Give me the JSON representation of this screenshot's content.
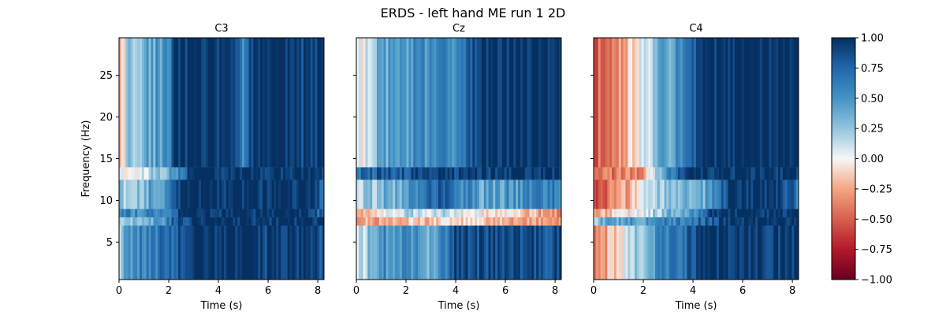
{
  "chart_data": {
    "type": "heatmap",
    "title": "ERDS - left hand ME run 1 2D",
    "xlabel": "Time (s)",
    "ylabel": "Frequency (Hz)",
    "xlim": [
      0,
      8.25
    ],
    "ylim": [
      0.5,
      29.5
    ],
    "x_ticks": [
      0,
      2,
      4,
      6,
      8
    ],
    "y_ticks": [
      5,
      10,
      15,
      20,
      25
    ],
    "colormap": "RdBu",
    "colorbar": {
      "range": [
        -1.0,
        1.0
      ],
      "ticks": [
        "1.00",
        "0.75",
        "0.50",
        "0.25",
        "0.00",
        "−0.25",
        "−0.50",
        "−0.75",
        "−1.00"
      ]
    },
    "panels": [
      {
        "title": "C3",
        "rows": [
          {
            "band": [
              0.5,
              7
            ],
            "profile": [
              [
                0,
                0.1
              ],
              [
                0.4,
                0.5
              ],
              [
                1.0,
                0.6
              ],
              [
                2.0,
                0.7
              ],
              [
                2.5,
                0.95
              ],
              [
                4.0,
                1.0
              ],
              [
                8.25,
                0.9
              ]
            ]
          },
          {
            "band": [
              7,
              8
            ],
            "profile": [
              [
                0,
                0.3
              ],
              [
                1.5,
                0.4
              ],
              [
                2.5,
                0.9
              ],
              [
                4.0,
                1.0
              ],
              [
                8.25,
                1.0
              ]
            ]
          },
          {
            "band": [
              8,
              9
            ],
            "profile": [
              [
                0,
                0.55
              ],
              [
                2.0,
                0.6
              ],
              [
                2.5,
                1.0
              ],
              [
                7.5,
                1.0
              ],
              [
                8.25,
                0.7
              ]
            ]
          },
          {
            "band": [
              9,
              12.5
            ],
            "profile": [
              [
                0,
                0.2
              ],
              [
                1.0,
                0.35
              ],
              [
                2.0,
                0.55
              ],
              [
                2.5,
                1.0
              ],
              [
                7.5,
                1.0
              ],
              [
                8.25,
                0.7
              ]
            ]
          },
          {
            "band": [
              12.5,
              14
            ],
            "profile": [
              [
                0,
                -0.1
              ],
              [
                1.0,
                0.1
              ],
              [
                2.0,
                0.4
              ],
              [
                3.0,
                1.0
              ],
              [
                8.25,
                1.0
              ]
            ]
          },
          {
            "band": [
              14,
              29.5
            ],
            "profile": [
              [
                0,
                -0.2
              ],
              [
                0.5,
                0.3
              ],
              [
                2.0,
                0.5
              ],
              [
                2.3,
                1.0
              ],
              [
                4.2,
                1.0
              ],
              [
                5.0,
                0.6
              ],
              [
                5.5,
                1.0
              ],
              [
                8.25,
                0.9
              ]
            ]
          }
        ]
      },
      {
        "title": "Cz",
        "rows": [
          {
            "band": [
              0.5,
              7
            ],
            "profile": [
              [
                0,
                0.0
              ],
              [
                1.0,
                0.5
              ],
              [
                2.0,
                0.6
              ],
              [
                3.0,
                0.3
              ],
              [
                4.0,
                0.9
              ],
              [
                8.25,
                0.85
              ]
            ]
          },
          {
            "band": [
              7,
              8
            ],
            "profile": [
              [
                0,
                -0.3
              ],
              [
                2.0,
                -0.2
              ],
              [
                4.0,
                -0.1
              ],
              [
                6.0,
                -0.2
              ],
              [
                8.25,
                -0.3
              ]
            ]
          },
          {
            "band": [
              8,
              9
            ],
            "profile": [
              [
                0,
                -0.2
              ],
              [
                2.0,
                0.2
              ],
              [
                4.0,
                0.1
              ],
              [
                6.0,
                -0.1
              ],
              [
                8.25,
                -0.3
              ]
            ]
          },
          {
            "band": [
              9,
              12.5
            ],
            "profile": [
              [
                0,
                0.2
              ],
              [
                2.0,
                0.4
              ],
              [
                3.5,
                0.8
              ],
              [
                5.0,
                0.4
              ],
              [
                6.5,
                0.5
              ],
              [
                8.25,
                0.6
              ]
            ]
          },
          {
            "band": [
              12.5,
              14
            ],
            "profile": [
              [
                0,
                0.7
              ],
              [
                3.0,
                0.9
              ],
              [
                8.25,
                1.0
              ]
            ]
          },
          {
            "band": [
              14,
              29.5
            ],
            "profile": [
              [
                0,
                -0.1
              ],
              [
                1.0,
                0.4
              ],
              [
                3.0,
                0.55
              ],
              [
                4.0,
                0.5
              ],
              [
                5.0,
                1.0
              ],
              [
                8.25,
                1.0
              ]
            ]
          }
        ]
      },
      {
        "title": "C4",
        "rows": [
          {
            "band": [
              0.5,
              7
            ],
            "profile": [
              [
                0,
                -0.4
              ],
              [
                1.5,
                0.1
              ],
              [
                2.5,
                0.5
              ],
              [
                3.5,
                0.7
              ],
              [
                4.5,
                1.0
              ],
              [
                8.25,
                0.95
              ]
            ]
          },
          {
            "band": [
              7,
              8
            ],
            "profile": [
              [
                0,
                0.3
              ],
              [
                2.0,
                0.5
              ],
              [
                4.0,
                0.7
              ],
              [
                6.0,
                1.0
              ],
              [
                8.25,
                1.0
              ]
            ]
          },
          {
            "band": [
              8,
              9
            ],
            "profile": [
              [
                0,
                -0.3
              ],
              [
                2.0,
                0.1
              ],
              [
                4.0,
                0.5
              ],
              [
                5.0,
                1.0
              ],
              [
                8.25,
                1.0
              ]
            ]
          },
          {
            "band": [
              9,
              12.5
            ],
            "profile": [
              [
                0,
                -0.6
              ],
              [
                1.5,
                -0.2
              ],
              [
                2.5,
                0.2
              ],
              [
                4.5,
                0.4
              ],
              [
                5.5,
                1.0
              ],
              [
                7.5,
                1.0
              ],
              [
                8.25,
                0.6
              ]
            ]
          },
          {
            "band": [
              12.5,
              14
            ],
            "profile": [
              [
                0,
                -0.5
              ],
              [
                2.0,
                -0.3
              ],
              [
                3.0,
                0.6
              ],
              [
                4.0,
                1.0
              ],
              [
                8.25,
                1.0
              ]
            ]
          },
          {
            "band": [
              14,
              29.5
            ],
            "profile": [
              [
                0,
                -0.55
              ],
              [
                1.0,
                -0.3
              ],
              [
                2.0,
                0.1
              ],
              [
                3.0,
                0.4
              ],
              [
                4.5,
                1.0
              ],
              [
                8.25,
                1.0
              ]
            ]
          }
        ]
      }
    ]
  }
}
